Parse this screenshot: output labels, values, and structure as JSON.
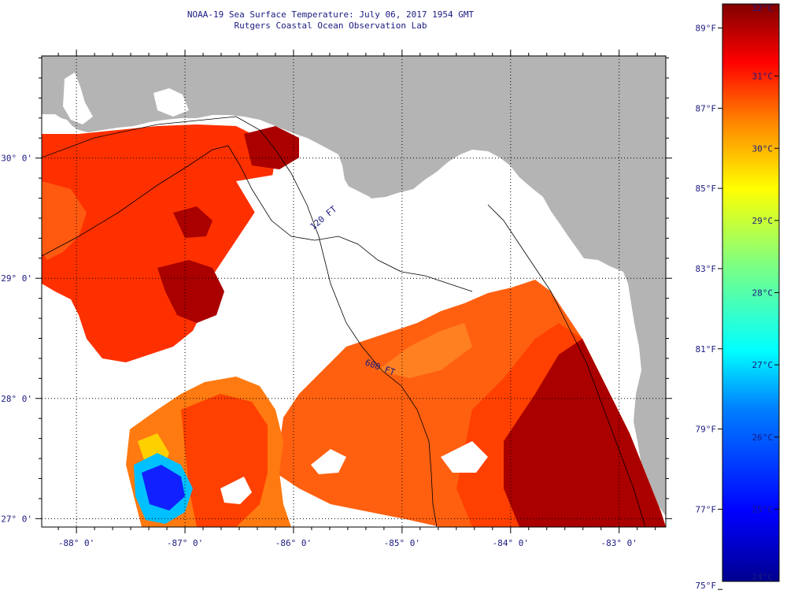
{
  "title": {
    "line1": "NOAA-19 Sea Surface Temperature:  July 06, 2017 1954 GMT",
    "line2": "Rutgers Coastal Ocean Observation Lab"
  },
  "map": {
    "lon_range": [
      -88.32,
      -82.57
    ],
    "lat_range": [
      26.93,
      30.85
    ],
    "lon_ticks": [
      -88,
      -87,
      -86,
      -85,
      -84,
      -83
    ],
    "lon_labels": [
      "-88° 0'",
      "-87° 0'",
      "-86° 0'",
      "-85° 0'",
      "-84° 0'",
      "-83° 0'"
    ],
    "lat_ticks": [
      27,
      28,
      29,
      30
    ],
    "lat_labels": [
      "27° 0'",
      "28° 0'",
      "29° 0'",
      "30° 0'"
    ],
    "contour_labels": [
      "120 FT",
      "600 FT"
    ],
    "land_color": "#b4b4b4",
    "cloud_color": "#ffffff",
    "grid": "dotted"
  },
  "colorbar": {
    "celsius_labels": [
      "32°C",
      "31°C",
      "30°C",
      "29°C",
      "28°C",
      "27°C",
      "26°C",
      "25°C",
      "24°C"
    ],
    "fahrenheit_labels": [
      "89°F",
      "87°F",
      "85°F",
      "83°F",
      "81°F",
      "79°F",
      "77°F",
      "75°F"
    ],
    "celsius_range": [
      24,
      32
    ],
    "colors": [
      "#00008f",
      "#0000ff",
      "#0080ff",
      "#00ffff",
      "#80ff80",
      "#ffff00",
      "#ff8000",
      "#ff0000",
      "#800000"
    ]
  }
}
